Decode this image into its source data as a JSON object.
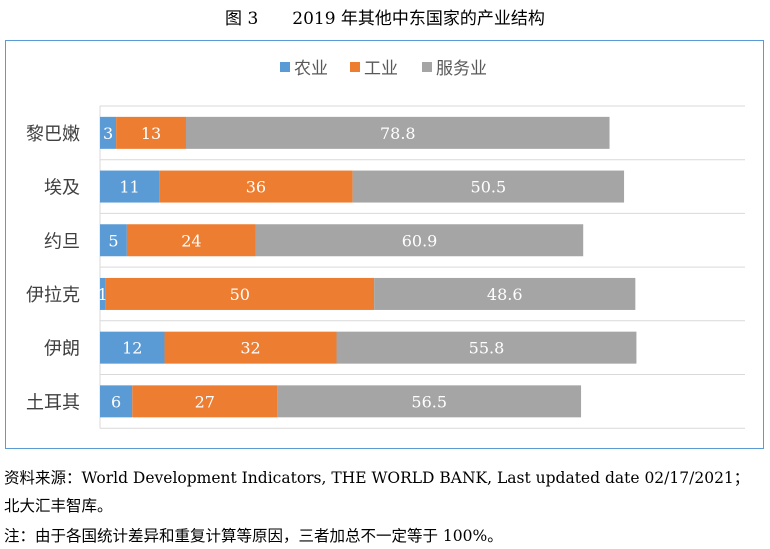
{
  "title": "图 3　　2019 年其他中东国家的产业结构",
  "chart_data": {
    "type": "bar",
    "orientation": "horizontal-stacked",
    "categories": [
      "黎巴嫩",
      "埃及",
      "约旦",
      "伊拉克",
      "伊朗",
      "土耳其"
    ],
    "series": [
      {
        "name": "农业",
        "color": "#5b9bd5",
        "values": [
          3,
          11,
          5,
          1,
          12,
          6
        ]
      },
      {
        "name": "工业",
        "color": "#ed7d31",
        "values": [
          13,
          36,
          24,
          50,
          32,
          27
        ]
      },
      {
        "name": "服务业",
        "color": "#a5a5a5",
        "values": [
          78.8,
          50.5,
          60.9,
          48.6,
          55.8,
          56.5
        ]
      }
    ],
    "xlim": [
      0,
      120
    ],
    "legend": "top-center",
    "grid": true
  },
  "notes": {
    "source1": "资料来源：World Development Indicators, THE WORLD BANK, Last updated date 02/17/2021；",
    "source2": "北大汇丰智库。",
    "note": "注：由于各国统计差异和重复计算等原因，三者加总不一定等于 100%。"
  }
}
